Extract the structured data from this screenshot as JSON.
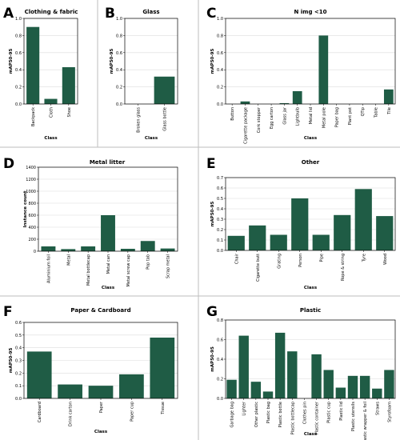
{
  "colors": {
    "bar": "#1f5c45",
    "grid": "#dcdcdc",
    "axis": "#000000",
    "divider": "#bdbdbd"
  },
  "chart_data": [
    {
      "id": "A",
      "type": "bar",
      "panel_letter": "A",
      "title": "Clothing & fabric",
      "xlabel": "Class",
      "ylabel": "mAP50-95",
      "ylim": [
        0,
        1.0
      ],
      "yticks": [
        "0.0",
        "0.2",
        "0.4",
        "0.6",
        "0.8",
        "1.0"
      ],
      "categories": [
        "Backpack",
        "Cloth",
        "Shoe"
      ],
      "values": [
        0.9,
        0.06,
        0.43
      ]
    },
    {
      "id": "B",
      "type": "bar",
      "panel_letter": "B",
      "title": "Glass",
      "xlabel": "Class",
      "ylabel": "mAP50-95",
      "ylim": [
        0,
        1.0
      ],
      "yticks": [
        "0.0",
        "0.2",
        "0.4",
        "0.6",
        "0.8",
        "1.0"
      ],
      "categories": [
        "Broken glass",
        "Glass bottle"
      ],
      "values": [
        0.0,
        0.32
      ]
    },
    {
      "id": "C",
      "type": "bar",
      "panel_letter": "C",
      "title": "N img <10",
      "xlabel": "Class",
      "ylabel": "mAP50-95",
      "ylim": [
        0,
        1.0
      ],
      "yticks": [
        "0.0",
        "0.2",
        "0.4",
        "0.6",
        "0.8",
        "1.0"
      ],
      "categories": [
        "Button",
        "Cigarette package",
        "Cork stopper",
        "Egg carton",
        "Glass jar",
        "Lightbulb",
        "Metal lid",
        "Metal pole",
        "Paper bag",
        "Plant pot",
        "QTip",
        "Table",
        "Tile"
      ],
      "values": [
        0.0,
        0.03,
        0.0,
        0.0,
        0.01,
        0.15,
        0.0,
        0.8,
        0.0,
        0.0,
        0.0,
        0.0,
        0.17
      ]
    },
    {
      "id": "D",
      "type": "bar",
      "panel_letter": "D",
      "title": "Metal litter",
      "xlabel": "Class",
      "ylabel": "Instance count",
      "ylim": [
        0,
        1400
      ],
      "yticks": [
        "0",
        "200",
        "400",
        "600",
        "800",
        "1000",
        "1200",
        "1400"
      ],
      "categories": [
        "Aluminium foil",
        "Metal",
        "Metal bottlecap",
        "Metal can",
        "Metal screw cap",
        "Pop tab",
        "Scrap metal"
      ],
      "values": [
        80,
        35,
        80,
        600,
        40,
        170,
        45
      ]
    },
    {
      "id": "E",
      "type": "bar",
      "panel_letter": "E",
      "title": "Other",
      "xlabel": "Class",
      "ylabel": "mAP50-95",
      "ylim": [
        0,
        0.7
      ],
      "yticks": [
        "0.0",
        "0.1",
        "0.2",
        "0.3",
        "0.4",
        "0.5",
        "0.6",
        "0.7"
      ],
      "categories": [
        "Chair",
        "Cigarette butt",
        "Grating",
        "Person",
        "Pipe",
        "Rope & string",
        "Tyre",
        "Wood"
      ],
      "values": [
        0.14,
        0.24,
        0.15,
        0.5,
        0.15,
        0.34,
        0.59,
        0.33
      ]
    },
    {
      "id": "F",
      "type": "bar",
      "panel_letter": "F",
      "title": "Paper & Cardboard",
      "xlabel": "Class",
      "ylabel": "mAP50-95",
      "ylim": [
        0,
        0.6
      ],
      "yticks": [
        "0.0",
        "0.1",
        "0.2",
        "0.3",
        "0.4",
        "0.5",
        "0.6"
      ],
      "categories": [
        "Cardboard",
        "Drink carton",
        "Paper",
        "Paper cup",
        "Tissue"
      ],
      "values": [
        0.37,
        0.11,
        0.1,
        0.19,
        0.48
      ]
    },
    {
      "id": "G",
      "type": "bar",
      "panel_letter": "G",
      "title": "Plastic",
      "xlabel": "Class",
      "ylabel": "mAP50-95",
      "ylim": [
        0,
        0.8
      ],
      "yticks": [
        "0.0",
        "0.2",
        "0.4",
        "0.6",
        "0.8"
      ],
      "categories": [
        "Garbage bag",
        "Lighter",
        "Other plastic",
        "Plastic bag",
        "Plastic bottle",
        "Plastic bottlecap",
        "Clothes pin",
        "Plastic container",
        "Plastic cup",
        "Plastic lid",
        "Plastic utensils",
        "Plastic wrapper & foil",
        "Straws",
        "Styrofoam"
      ],
      "values": [
        0.19,
        0.64,
        0.17,
        0.07,
        0.67,
        0.48,
        0.0,
        0.45,
        0.29,
        0.11,
        0.23,
        0.23,
        0.1,
        0.29
      ]
    }
  ]
}
